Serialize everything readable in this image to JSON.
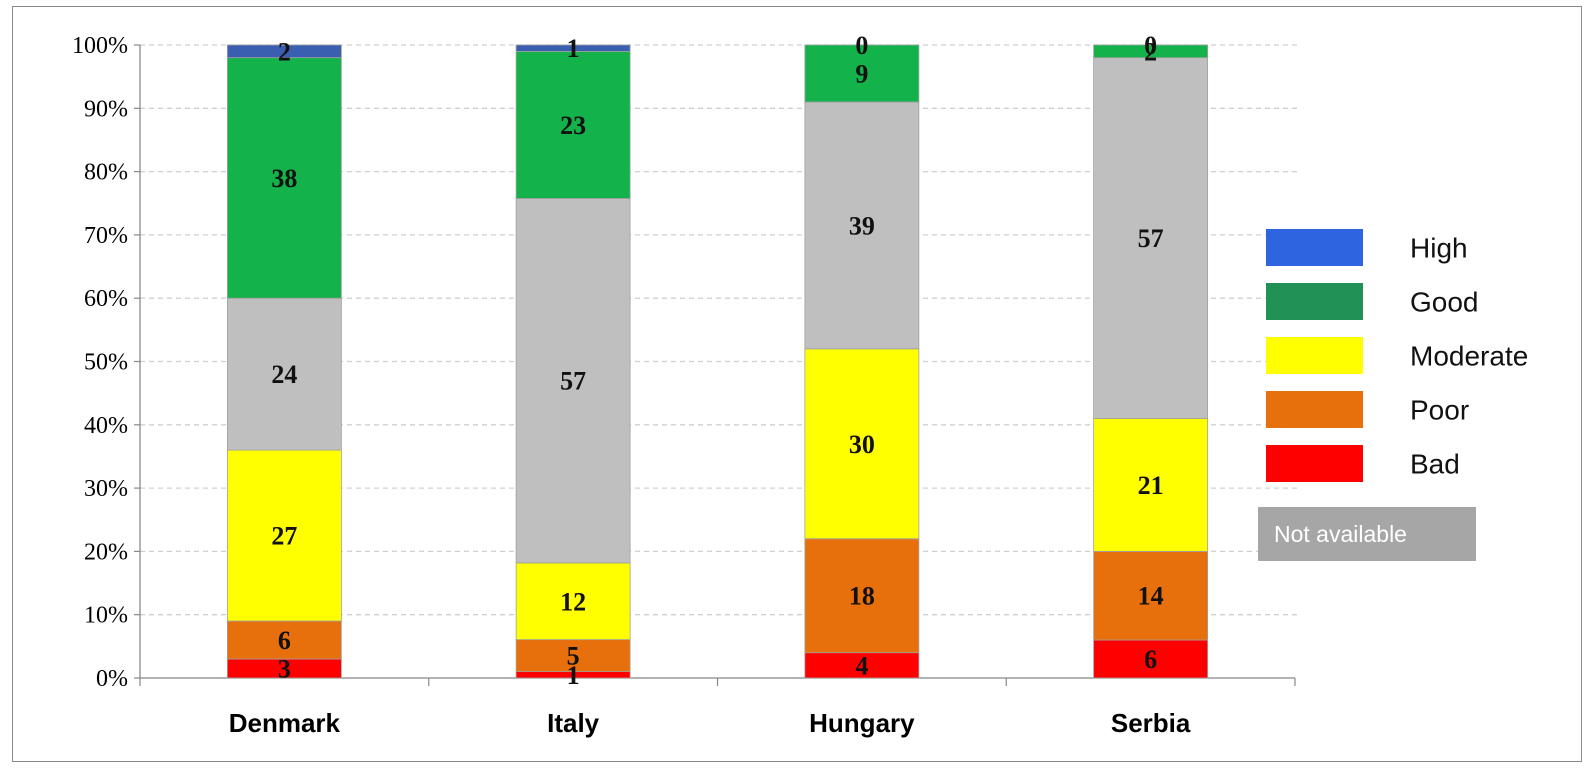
{
  "chart_data": {
    "type": "bar",
    "stacked": true,
    "normalized": true,
    "categories": [
      "Denmark",
      "Italy",
      "Hungary",
      "Serbia"
    ],
    "series": [
      {
        "name": "Bad",
        "color": "#ff0000",
        "values": [
          3,
          1,
          4,
          6
        ]
      },
      {
        "name": "Poor",
        "color": "#e8700c",
        "values": [
          6,
          5,
          18,
          14
        ]
      },
      {
        "name": "Moderate",
        "color": "#ffff00",
        "values": [
          27,
          12,
          30,
          21
        ]
      },
      {
        "name": "Not available",
        "color": "#bfbfbf",
        "values": [
          24,
          57,
          39,
          57
        ]
      },
      {
        "name": "Good",
        "color": "#13b24a",
        "values": [
          38,
          23,
          9,
          2
        ]
      },
      {
        "name": "High",
        "color": "#3a5fb0",
        "values": [
          2,
          1,
          0,
          0
        ]
      }
    ],
    "ylim": [
      0,
      100
    ],
    "yticks": [
      "0%",
      "10%",
      "20%",
      "30%",
      "40%",
      "50%",
      "60%",
      "70%",
      "80%",
      "90%",
      "100%"
    ],
    "grid": true,
    "legend_position": "right",
    "xlabel": "",
    "ylabel": "",
    "title": ""
  },
  "legend": {
    "items": [
      {
        "label": "High",
        "color": "#2f64e0"
      },
      {
        "label": "Good",
        "color": "#229155"
      },
      {
        "label": "Moderate",
        "color": "#ffff00"
      },
      {
        "label": "Poor",
        "color": "#e8700c"
      },
      {
        "label": "Bad",
        "color": "#ff0000"
      }
    ],
    "not_available": {
      "label": "Not available",
      "color": "#a6a6a6"
    }
  }
}
